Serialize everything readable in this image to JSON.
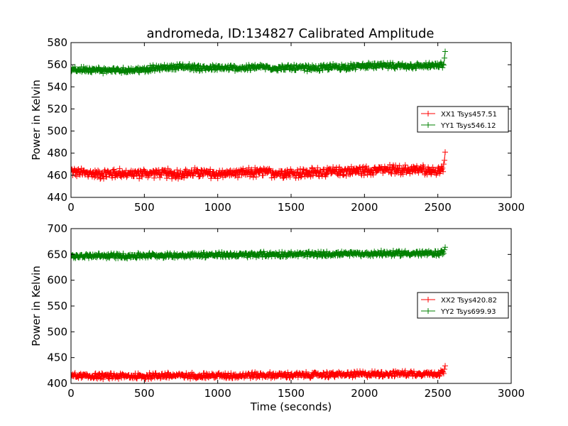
{
  "figure_title": "andromeda, ID:134827 Calibrated Amplitude",
  "chart_data": [
    {
      "type": "line",
      "title": "andromeda, ID:134827 Calibrated Amplitude",
      "xlabel": "",
      "ylabel": "Power in Kelvin",
      "xlim": [
        0,
        3000
      ],
      "ylim": [
        440,
        580
      ],
      "xticks": [
        0,
        500,
        1000,
        1500,
        2000,
        2500,
        3000
      ],
      "yticks": [
        440,
        460,
        480,
        500,
        520,
        540,
        560,
        580
      ],
      "grid": false,
      "legend_position": "right",
      "series": [
        {
          "name": "XX1 Tsys457.51",
          "color": "#ff0000",
          "marker": "plus",
          "x": [
            0,
            100,
            200,
            300,
            400,
            500,
            600,
            700,
            800,
            900,
            1000,
            1100,
            1200,
            1300,
            1400,
            1500,
            1600,
            1700,
            1800,
            1900,
            2000,
            2100,
            2200,
            2300,
            2400,
            2500,
            2540,
            2550
          ],
          "y": [
            463,
            462,
            461,
            462,
            461,
            462,
            462,
            461,
            462,
            462,
            461,
            462,
            462,
            463,
            462,
            462,
            462,
            463,
            463,
            464,
            464,
            465,
            465,
            465,
            465,
            464,
            466,
            481
          ],
          "noise": 3.5
        },
        {
          "name": "YY1 Tsys546.12",
          "color": "#008000",
          "marker": "plus",
          "x": [
            0,
            100,
            200,
            300,
            400,
            500,
            600,
            700,
            800,
            900,
            1000,
            1100,
            1200,
            1300,
            1400,
            1500,
            1600,
            1700,
            1800,
            1900,
            2000,
            2100,
            2200,
            2300,
            2400,
            2500,
            2540,
            2550
          ],
          "y": [
            555,
            556,
            555,
            555,
            555,
            556,
            557,
            558,
            558,
            557,
            557,
            557,
            557,
            558,
            557,
            557,
            557,
            557,
            558,
            558,
            559,
            559,
            559,
            559,
            559,
            559,
            560,
            572
          ],
          "noise": 2.2
        }
      ]
    },
    {
      "type": "line",
      "title": "",
      "xlabel": "Time (seconds)",
      "ylabel": "Power in Kelvin",
      "xlim": [
        0,
        3000
      ],
      "ylim": [
        400,
        700
      ],
      "xticks": [
        0,
        500,
        1000,
        1500,
        2000,
        2500,
        3000
      ],
      "yticks": [
        400,
        450,
        500,
        550,
        600,
        650,
        700
      ],
      "grid": false,
      "legend_position": "right",
      "series": [
        {
          "name": "XX2 Tsys420.82",
          "color": "#ff0000",
          "marker": "plus",
          "x": [
            0,
            100,
            200,
            300,
            400,
            500,
            600,
            700,
            800,
            900,
            1000,
            1100,
            1200,
            1300,
            1400,
            1500,
            1600,
            1700,
            1800,
            1900,
            2000,
            2100,
            2200,
            2300,
            2400,
            2500,
            2540,
            2550
          ],
          "y": [
            415,
            414,
            414,
            414,
            414,
            414,
            415,
            415,
            415,
            415,
            415,
            415,
            416,
            416,
            416,
            416,
            416,
            417,
            417,
            417,
            418,
            418,
            419,
            419,
            419,
            419,
            421,
            434
          ],
          "noise": 4.5
        },
        {
          "name": "YY2 Tsys699.93",
          "color": "#008000",
          "marker": "plus",
          "x": [
            0,
            100,
            200,
            300,
            400,
            500,
            600,
            700,
            800,
            900,
            1000,
            1100,
            1200,
            1300,
            1400,
            1500,
            1600,
            1700,
            1800,
            1900,
            2000,
            2100,
            2200,
            2300,
            2400,
            2500,
            2540,
            2550
          ],
          "y": [
            647,
            647,
            647,
            647,
            647,
            648,
            648,
            648,
            649,
            649,
            649,
            649,
            649,
            650,
            650,
            650,
            650,
            650,
            651,
            651,
            651,
            652,
            652,
            652,
            652,
            652,
            654,
            664
          ],
          "noise": 4
        }
      ]
    }
  ]
}
